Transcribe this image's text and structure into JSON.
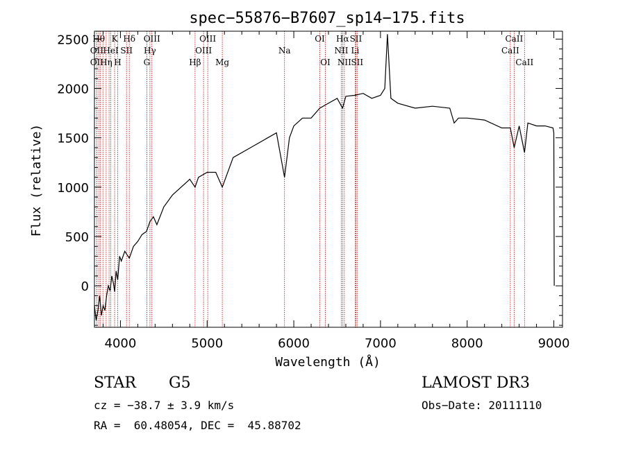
{
  "chart_data": {
    "type": "line",
    "title": "spec−55876−B7607_sp14−175.fits",
    "xlabel": "Wavelength (Å)",
    "ylabel": "Flux (relative)",
    "xlim": [
      3700,
      9100
    ],
    "ylim": [
      -420,
      2580
    ],
    "xticks": [
      4000,
      5000,
      6000,
      7000,
      8000,
      9000
    ],
    "yticks": [
      0,
      500,
      1000,
      1500,
      2000,
      2500
    ],
    "series": [
      {
        "x": [
          3700,
          3720,
          3740,
          3760,
          3780,
          3800,
          3820,
          3840,
          3860,
          3880,
          3900,
          3920,
          3933,
          3950,
          3968,
          3990,
          4010,
          4050,
          4102,
          4150,
          4200,
          4250,
          4300,
          4340,
          4380,
          4420,
          4500,
          4600,
          4700,
          4800,
          4861,
          4900,
          5000,
          5100,
          5175,
          5300,
          5500,
          5700,
          5800,
          5893,
          5950,
          6000,
          6100,
          6200,
          6300,
          6400,
          6500,
          6563,
          6600,
          6700,
          6800,
          6900,
          7000,
          7050,
          7080,
          7120,
          7200,
          7400,
          7600,
          7800,
          7850,
          7900,
          8000,
          8200,
          8400,
          8498,
          8542,
          8600,
          8662,
          8700,
          8800,
          8900,
          8990,
          9000,
          9005
        ],
        "y": [
          -200,
          -350,
          -250,
          -100,
          -300,
          -200,
          -250,
          -100,
          0,
          -50,
          100,
          20,
          -60,
          150,
          60,
          300,
          250,
          350,
          280,
          400,
          450,
          520,
          550,
          650,
          700,
          620,
          800,
          920,
          1000,
          1080,
          1000,
          1100,
          1150,
          1150,
          1000,
          1300,
          1400,
          1500,
          1550,
          1100,
          1500,
          1620,
          1700,
          1700,
          1800,
          1850,
          1900,
          1800,
          1920,
          1930,
          1950,
          1900,
          1930,
          2000,
          2550,
          1900,
          1850,
          1800,
          1820,
          1800,
          1650,
          1700,
          1700,
          1680,
          1600,
          1600,
          1400,
          1620,
          1350,
          1650,
          1620,
          1620,
          1600,
          1550,
          0
        ]
      }
    ],
    "line_markers": [
      {
        "wl": 3750,
        "label": "Hθ",
        "row": 0
      },
      {
        "wl": 3727,
        "label": "OII",
        "row": 1
      },
      {
        "wl": 3727,
        "label": "OII",
        "row": 2
      },
      {
        "wl": 3770,
        "label": "",
        "row": -1
      },
      {
        "wl": 3798,
        "label": "",
        "row": -1
      },
      {
        "wl": 3835,
        "label": "Hη",
        "row": 2
      },
      {
        "wl": 3869,
        "label": "",
        "row": -1
      },
      {
        "wl": 3889,
        "label": "HeI",
        "row": 1
      },
      {
        "wl": 3933,
        "label": "K",
        "row": 0
      },
      {
        "wl": 3968,
        "label": "H",
        "row": 2
      },
      {
        "wl": 4070,
        "label": "SII",
        "row": 1
      },
      {
        "wl": 4102,
        "label": "Hδ",
        "row": 0
      },
      {
        "wl": 4304,
        "label": "G",
        "row": 2
      },
      {
        "wl": 4340,
        "label": "Hγ",
        "row": 1
      },
      {
        "wl": 4363,
        "label": "OIII",
        "row": 0
      },
      {
        "wl": 4861,
        "label": "Hβ",
        "row": 2
      },
      {
        "wl": 4959,
        "label": "OIII",
        "row": 1
      },
      {
        "wl": 5007,
        "label": "OIII",
        "row": 0
      },
      {
        "wl": 5175,
        "label": "Mg",
        "row": 2
      },
      {
        "wl": 5893,
        "label": "Na",
        "row": 1
      },
      {
        "wl": 6300,
        "label": "OI",
        "row": 0
      },
      {
        "wl": 6364,
        "label": "OI",
        "row": 2
      },
      {
        "wl": 6548,
        "label": "NII",
        "row": 1
      },
      {
        "wl": 6563,
        "label": "Hα",
        "row": 0
      },
      {
        "wl": 6583,
        "label": "NII",
        "row": 2
      },
      {
        "wl": 6708,
        "label": "Li",
        "row": 1
      },
      {
        "wl": 6716,
        "label": "SII",
        "row": 0
      },
      {
        "wl": 6731,
        "label": "SII",
        "row": 2
      },
      {
        "wl": 8498,
        "label": "CaII",
        "row": 1
      },
      {
        "wl": 8542,
        "label": "CaII",
        "row": 0
      },
      {
        "wl": 8662,
        "label": "CaII",
        "row": 2
      }
    ]
  },
  "info": {
    "object_class": "STAR",
    "subclass": "G5",
    "survey": "LAMOST DR3",
    "redshift": "cz = −38.7 ± 3.9 km/s",
    "obs_date": "Obs−Date: 20111110",
    "coords": "RA =  60.48054, DEC =  45.88702"
  },
  "colors": {
    "marker": "#cc0000",
    "spectrum": "#000000"
  }
}
